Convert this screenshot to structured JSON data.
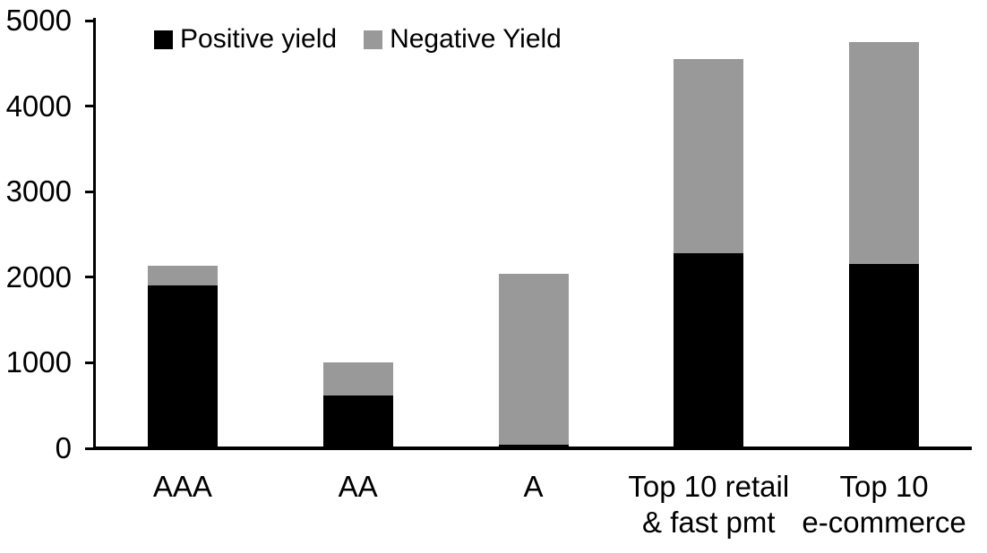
{
  "chart_data": {
    "type": "bar",
    "stacked": true,
    "title": "",
    "xlabel": "",
    "ylabel": "",
    "categories": [
      "AAA",
      "AA",
      "A",
      "Top 10 retail & fast pmt",
      "Top 10 e-commerce"
    ],
    "category_label_lines": [
      [
        "AAA"
      ],
      [
        "AA"
      ],
      [
        "A"
      ],
      [
        "Top 10 retail",
        "& fast pmt"
      ],
      [
        "Top 10",
        "e-commerce"
      ]
    ],
    "series": [
      {
        "name": "Positive yield",
        "color": "#000000",
        "values": [
          1900,
          620,
          40,
          2280,
          2150
        ]
      },
      {
        "name": "Negative Yield",
        "color": "#999999",
        "values": [
          230,
          380,
          2000,
          2270,
          2600
        ]
      }
    ],
    "stack_totals": [
      2130,
      1000,
      2040,
      4550,
      4750
    ],
    "ylim": [
      0,
      5000
    ],
    "yticks": [
      0,
      1000,
      2000,
      3000,
      4000,
      5000
    ],
    "legend_position": "top",
    "grid": false,
    "colors": {
      "background": "#ffffff",
      "axis": "#000000",
      "text": "#000000"
    }
  }
}
